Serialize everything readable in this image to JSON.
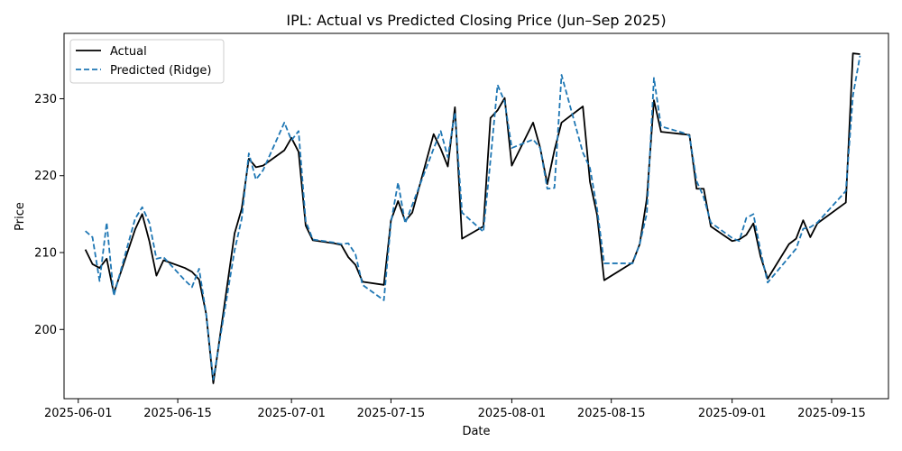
{
  "chart_data": {
    "type": "line",
    "title": "IPL: Actual vs Predicted Closing Price (Jun–Sep 2025)",
    "xlabel": "Date",
    "ylabel": "Price",
    "x_ticks": [
      "2025-06-01",
      "2025-06-15",
      "2025-07-01",
      "2025-07-15",
      "2025-08-01",
      "2025-08-15",
      "2025-09-01",
      "2025-09-15"
    ],
    "y_ticks": [
      200,
      210,
      220,
      230
    ],
    "xlim": [
      "2025-05-30",
      "2025-09-23"
    ],
    "ylim": [
      191,
      238.5
    ],
    "grid": false,
    "legend": "top-left",
    "series": [
      {
        "name": "Actual",
        "color": "#000000",
        "style": "solid",
        "points": [
          [
            "2025-06-02",
            210.4
          ],
          [
            "2025-06-03",
            208.5
          ],
          [
            "2025-06-04",
            208.0
          ],
          [
            "2025-06-05",
            209.2
          ],
          [
            "2025-06-06",
            204.7
          ],
          [
            "2025-06-09",
            213.0
          ],
          [
            "2025-06-10",
            215.0
          ],
          [
            "2025-06-11",
            211.5
          ],
          [
            "2025-06-12",
            207.0
          ],
          [
            "2025-06-13",
            209.0
          ],
          [
            "2025-06-16",
            208.0
          ],
          [
            "2025-06-17",
            207.5
          ],
          [
            "2025-06-18",
            206.5
          ],
          [
            "2025-06-19",
            202.0
          ],
          [
            "2025-06-20",
            193.0
          ],
          [
            "2025-06-23",
            212.5
          ],
          [
            "2025-06-24",
            215.7
          ],
          [
            "2025-06-25",
            222.2
          ],
          [
            "2025-06-26",
            221.1
          ],
          [
            "2025-06-27",
            221.3
          ],
          [
            "2025-06-30",
            223.3
          ],
          [
            "2025-07-01",
            224.9
          ],
          [
            "2025-07-02",
            223.1
          ],
          [
            "2025-07-03",
            213.5
          ],
          [
            "2025-07-04",
            211.6
          ],
          [
            "2025-07-07",
            211.2
          ],
          [
            "2025-07-08",
            211.0
          ],
          [
            "2025-07-09",
            209.4
          ],
          [
            "2025-07-10",
            208.4
          ],
          [
            "2025-07-11",
            206.2
          ],
          [
            "2025-07-14",
            205.8
          ],
          [
            "2025-07-15",
            214.2
          ],
          [
            "2025-07-16",
            216.7
          ],
          [
            "2025-07-17",
            214.1
          ],
          [
            "2025-07-18",
            215.2
          ],
          [
            "2025-07-21",
            225.4
          ],
          [
            "2025-07-22",
            223.5
          ],
          [
            "2025-07-23",
            221.2
          ],
          [
            "2025-07-24",
            228.9
          ],
          [
            "2025-07-25",
            211.8
          ],
          [
            "2025-07-28",
            213.4
          ],
          [
            "2025-07-29",
            227.5
          ],
          [
            "2025-07-30",
            228.5
          ],
          [
            "2025-07-31",
            230.1
          ],
          [
            "2025-08-01",
            221.3
          ],
          [
            "2025-08-04",
            226.9
          ],
          [
            "2025-08-05",
            223.6
          ],
          [
            "2025-08-06",
            218.9
          ],
          [
            "2025-08-07",
            223.3
          ],
          [
            "2025-08-08",
            226.9
          ],
          [
            "2025-08-11",
            229.0
          ],
          [
            "2025-08-12",
            219.2
          ],
          [
            "2025-08-13",
            214.9
          ],
          [
            "2025-08-14",
            206.4
          ],
          [
            "2025-08-18",
            208.7
          ],
          [
            "2025-08-19",
            211.1
          ],
          [
            "2025-08-20",
            217.0
          ],
          [
            "2025-08-21",
            229.8
          ],
          [
            "2025-08-22",
            225.7
          ],
          [
            "2025-08-25",
            225.4
          ],
          [
            "2025-08-26",
            225.3
          ],
          [
            "2025-08-27",
            218.3
          ],
          [
            "2025-08-28",
            218.3
          ],
          [
            "2025-08-29",
            213.4
          ],
          [
            "2025-09-01",
            211.5
          ],
          [
            "2025-09-02",
            211.7
          ],
          [
            "2025-09-03",
            212.3
          ],
          [
            "2025-09-04",
            213.8
          ],
          [
            "2025-09-05",
            209.5
          ],
          [
            "2025-09-06",
            206.6
          ],
          [
            "2025-09-09",
            211.1
          ],
          [
            "2025-09-10",
            211.8
          ],
          [
            "2025-09-11",
            214.2
          ],
          [
            "2025-09-12",
            212.0
          ],
          [
            "2025-09-13",
            213.8
          ],
          [
            "2025-09-17",
            216.5
          ],
          [
            "2025-09-18",
            235.9
          ],
          [
            "2025-09-19",
            235.8
          ]
        ]
      },
      {
        "name": "Predicted (Ridge)",
        "color": "#1f77b4",
        "style": "dashed",
        "points": [
          [
            "2025-06-02",
            212.8
          ],
          [
            "2025-06-03",
            212.0
          ],
          [
            "2025-06-04",
            206.3
          ],
          [
            "2025-06-05",
            213.9
          ],
          [
            "2025-06-06",
            204.4
          ],
          [
            "2025-06-09",
            214.4
          ],
          [
            "2025-06-10",
            215.9
          ],
          [
            "2025-06-11",
            213.9
          ],
          [
            "2025-06-12",
            209.2
          ],
          [
            "2025-06-13",
            209.4
          ],
          [
            "2025-06-16",
            206.4
          ],
          [
            "2025-06-17",
            205.5
          ],
          [
            "2025-06-18",
            207.9
          ],
          [
            "2025-06-19",
            202.0
          ],
          [
            "2025-06-20",
            193.5
          ],
          [
            "2025-06-23",
            210.3
          ],
          [
            "2025-06-24",
            214.4
          ],
          [
            "2025-06-25",
            222.9
          ],
          [
            "2025-06-26",
            219.5
          ],
          [
            "2025-06-27",
            220.7
          ],
          [
            "2025-06-30",
            226.9
          ],
          [
            "2025-07-01",
            224.6
          ],
          [
            "2025-07-02",
            225.8
          ],
          [
            "2025-07-03",
            214.1
          ],
          [
            "2025-07-04",
            211.7
          ],
          [
            "2025-07-07",
            211.3
          ],
          [
            "2025-07-08",
            211.1
          ],
          [
            "2025-07-09",
            211.2
          ],
          [
            "2025-07-10",
            209.8
          ],
          [
            "2025-07-11",
            205.8
          ],
          [
            "2025-07-14",
            203.8
          ],
          [
            "2025-07-15",
            213.9
          ],
          [
            "2025-07-16",
            219.1
          ],
          [
            "2025-07-17",
            213.8
          ],
          [
            "2025-07-18",
            216.2
          ],
          [
            "2025-07-21",
            223.5
          ],
          [
            "2025-07-22",
            225.8
          ],
          [
            "2025-07-23",
            222.4
          ],
          [
            "2025-07-24",
            228.2
          ],
          [
            "2025-07-25",
            215.2
          ],
          [
            "2025-07-28",
            212.7
          ],
          [
            "2025-07-29",
            222.0
          ],
          [
            "2025-07-30",
            231.8
          ],
          [
            "2025-07-31",
            229.6
          ],
          [
            "2025-08-01",
            223.6
          ],
          [
            "2025-08-04",
            224.7
          ],
          [
            "2025-08-05",
            223.6
          ],
          [
            "2025-08-06",
            218.3
          ],
          [
            "2025-08-07",
            218.4
          ],
          [
            "2025-08-08",
            233.1
          ],
          [
            "2025-08-11",
            223.0
          ],
          [
            "2025-08-12",
            221.0
          ],
          [
            "2025-08-13",
            215.7
          ],
          [
            "2025-08-14",
            208.6
          ],
          [
            "2025-08-18",
            208.6
          ],
          [
            "2025-08-19",
            211.1
          ],
          [
            "2025-08-20",
            215.1
          ],
          [
            "2025-08-21",
            232.7
          ],
          [
            "2025-08-22",
            226.4
          ],
          [
            "2025-08-25",
            225.6
          ],
          [
            "2025-08-26",
            225.2
          ],
          [
            "2025-08-27",
            219.3
          ],
          [
            "2025-08-28",
            217.2
          ],
          [
            "2025-08-29",
            213.9
          ],
          [
            "2025-09-01",
            211.9
          ],
          [
            "2025-09-02",
            211.5
          ],
          [
            "2025-09-03",
            214.5
          ],
          [
            "2025-09-04",
            215.0
          ],
          [
            "2025-09-05",
            210.2
          ],
          [
            "2025-09-06",
            206.1
          ],
          [
            "2025-09-09",
            209.4
          ],
          [
            "2025-09-10",
            210.5
          ],
          [
            "2025-09-11",
            213.1
          ],
          [
            "2025-09-12",
            213.3
          ],
          [
            "2025-09-13",
            213.9
          ],
          [
            "2025-09-17",
            218.0
          ],
          [
            "2025-09-18",
            230.4
          ],
          [
            "2025-09-19",
            235.6
          ]
        ]
      }
    ]
  }
}
